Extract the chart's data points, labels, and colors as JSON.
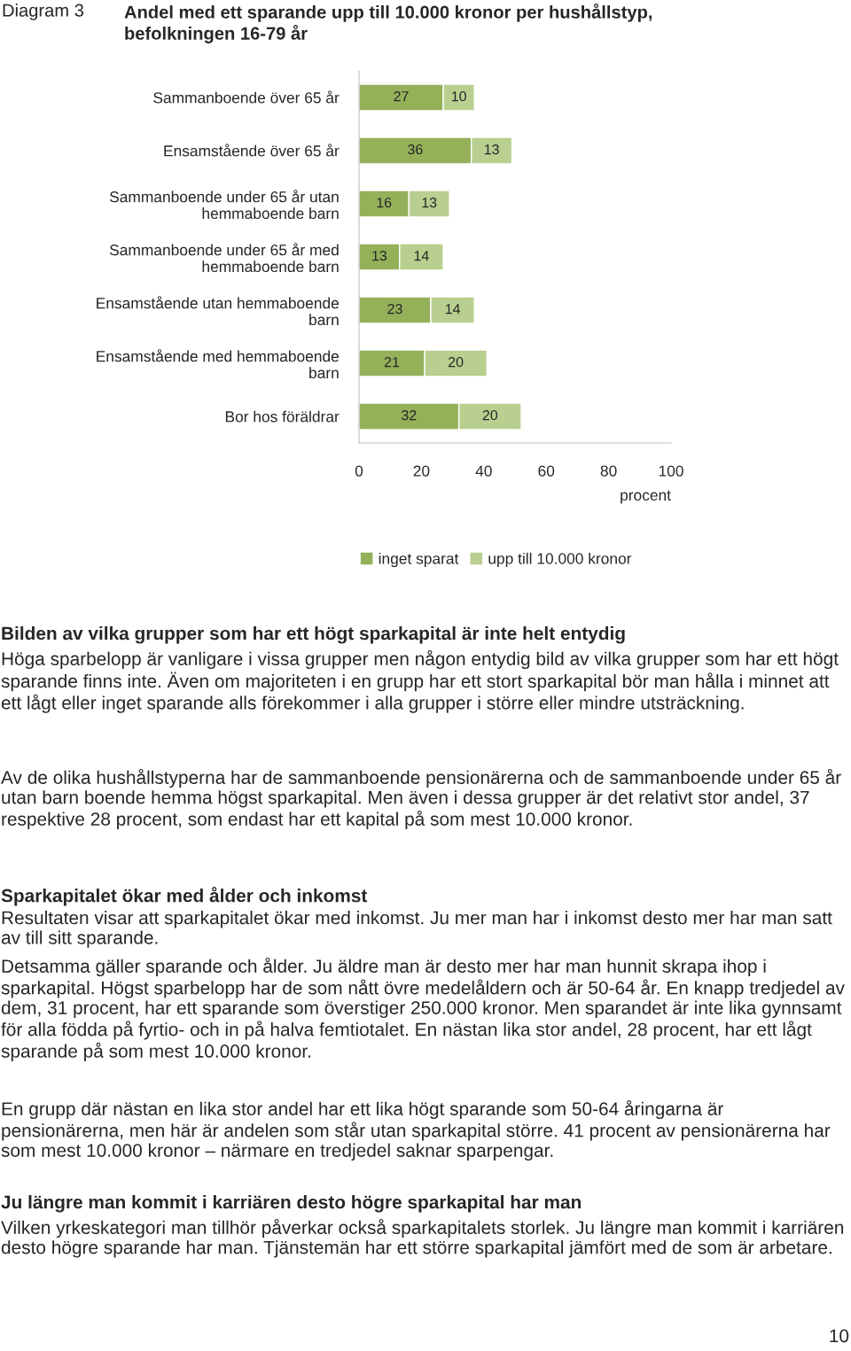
{
  "chart_data": {
    "type": "bar",
    "orientation": "horizontal",
    "stacked": true,
    "title": "Andel med ett sparande upp till 10.000 kronor per hushållstyp,\nbefolkningen 16-79 år",
    "categories": [
      "Sammanboende över 65 år",
      "Ensamstående över 65 år",
      "Sammanboende under 65 år utan hemmaboende barn",
      "Sammanboende under 65 år med hemmaboende barn",
      "Ensamstående utan hemmaboende barn",
      "Ensamstående med hemmaboende barn",
      "Bor hos föräldrar"
    ],
    "series": [
      {
        "name": "inget sparat",
        "color": "#94b15a",
        "values": [
          27,
          36,
          16,
          13,
          23,
          21,
          32
        ]
      },
      {
        "name": "upp till 10.000 kronor",
        "color": "#b9cf8f",
        "values": [
          10,
          13,
          13,
          14,
          14,
          20,
          20
        ]
      }
    ],
    "xlabel": "procent",
    "xlim": [
      0,
      100
    ],
    "xticks": [
      0,
      20,
      40,
      60,
      80,
      100
    ],
    "data_labels": true,
    "grid": false,
    "legend": "bottom",
    "annotations": [
      "Diagram 3",
      "Bilden av vilka grupper som har ett högt sparkapital är inte helt entydig",
      "Höga sparbelopp är vanligare i vissa grupper men någon entydig bild av vilka grupper som har ett högt sparande finns inte. Även om majoriteten i en grupp har ett stort sparkapital bör man hålla i minnet att ett lågt eller inget sparande alls förekommer i alla grupper i större eller mindre utsträckning.",
      "Av de olika hushållstyperna har de sammanboende pensionärerna och de sammanboende under 65 år utan barn boende hemma högst sparkapital. Men även i dessa grupper är det relativt stor andel, 37 respektive 28 procent, som endast har ett kapital på som mest 10.000 kronor.",
      "Sparkapitalet ökar med ålder och inkomst",
      "Resultaten visar att sparkapitalet ökar med inkomst. Ju mer man har i inkomst desto mer har man satt av till sitt sparande.",
      "Detsamma gäller sparande och ålder. Ju äldre man är desto mer har man hunnit skrapa ihop i sparkapital. Högst sparbelopp har de som nått övre medelåldern och är 50-64 år. En knapp tredjedel av dem, 31 procent, har ett sparande som överstiger 250.000 kronor. Men sparandet är inte lika gynnsamt för alla födda på fyrtio- och in på halva femtiotalet. En nästan lika stor andel, 28 procent, har ett lågt sparande på som mest 10.000 kronor.",
      "En grupp där nästan en lika stor andel har ett lika högt sparande som 50-64 åringarna är pensionärerna, men här är andelen som står utan sparkapital större. 41 procent av pensionärerna har som mest 10.000 kronor – närmare en tredjedel saknar sparpengar.",
      "Ju längre man kommit i karriären desto högre sparkapital har man",
      "Vilken yrkeskategori man tillhör påverkar också sparkapitalets storlek. Ju längre man kommit i karriären desto högre sparande har man. Tjänstemän har ett större sparkapital jämfört med de som är arbetare.",
      "10"
    ]
  }
}
